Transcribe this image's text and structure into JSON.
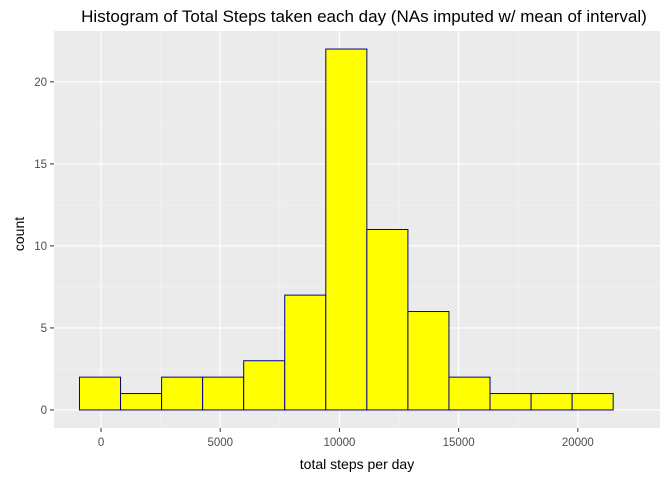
{
  "chart_data": {
    "type": "bar",
    "subtype": "histogram",
    "title": "Histogram of Total Steps taken each day (NAs imputed w/ mean of interval)",
    "xlabel": "total steps per day",
    "ylabel": "count",
    "bin_width": 1722,
    "bins": [
      {
        "start": -904,
        "end": 818,
        "count": 2
      },
      {
        "start": 818,
        "end": 2540,
        "count": 1
      },
      {
        "start": 2540,
        "end": 4262,
        "count": 2
      },
      {
        "start": 4262,
        "end": 5984,
        "count": 2
      },
      {
        "start": 5984,
        "end": 7706,
        "count": 3
      },
      {
        "start": 7706,
        "end": 9428,
        "count": 7
      },
      {
        "start": 9428,
        "end": 11150,
        "count": 22
      },
      {
        "start": 11150,
        "end": 12872,
        "count": 11
      },
      {
        "start": 12872,
        "end": 14594,
        "count": 6
      },
      {
        "start": 14594,
        "end": 16316,
        "count": 2
      },
      {
        "start": 16316,
        "end": 18038,
        "count": 1
      },
      {
        "start": 18038,
        "end": 19760,
        "count": 1
      },
      {
        "start": 19760,
        "end": 21482,
        "count": 1
      }
    ],
    "xlim": [
      -1973,
      23446
    ],
    "ylim": [
      -1.1,
      23.1
    ],
    "x_ticks": [
      0,
      5000,
      10000,
      15000,
      20000
    ],
    "x_tick_labels": [
      "0",
      "5000",
      "10000",
      "15000",
      "20000"
    ],
    "y_ticks": [
      0,
      5,
      10,
      15,
      20
    ],
    "y_tick_labels": [
      "0",
      "5",
      "10",
      "15",
      "20"
    ],
    "grid": true,
    "colors": {
      "panel_background": "#ebebeb",
      "grid_major": "#ffffff",
      "grid_minor": "#f5f5f5",
      "bar_fill": "#ffff00",
      "bar_outline": "#00008b",
      "tick_text": "#4d4d4d",
      "tick_mark": "#333333"
    }
  }
}
